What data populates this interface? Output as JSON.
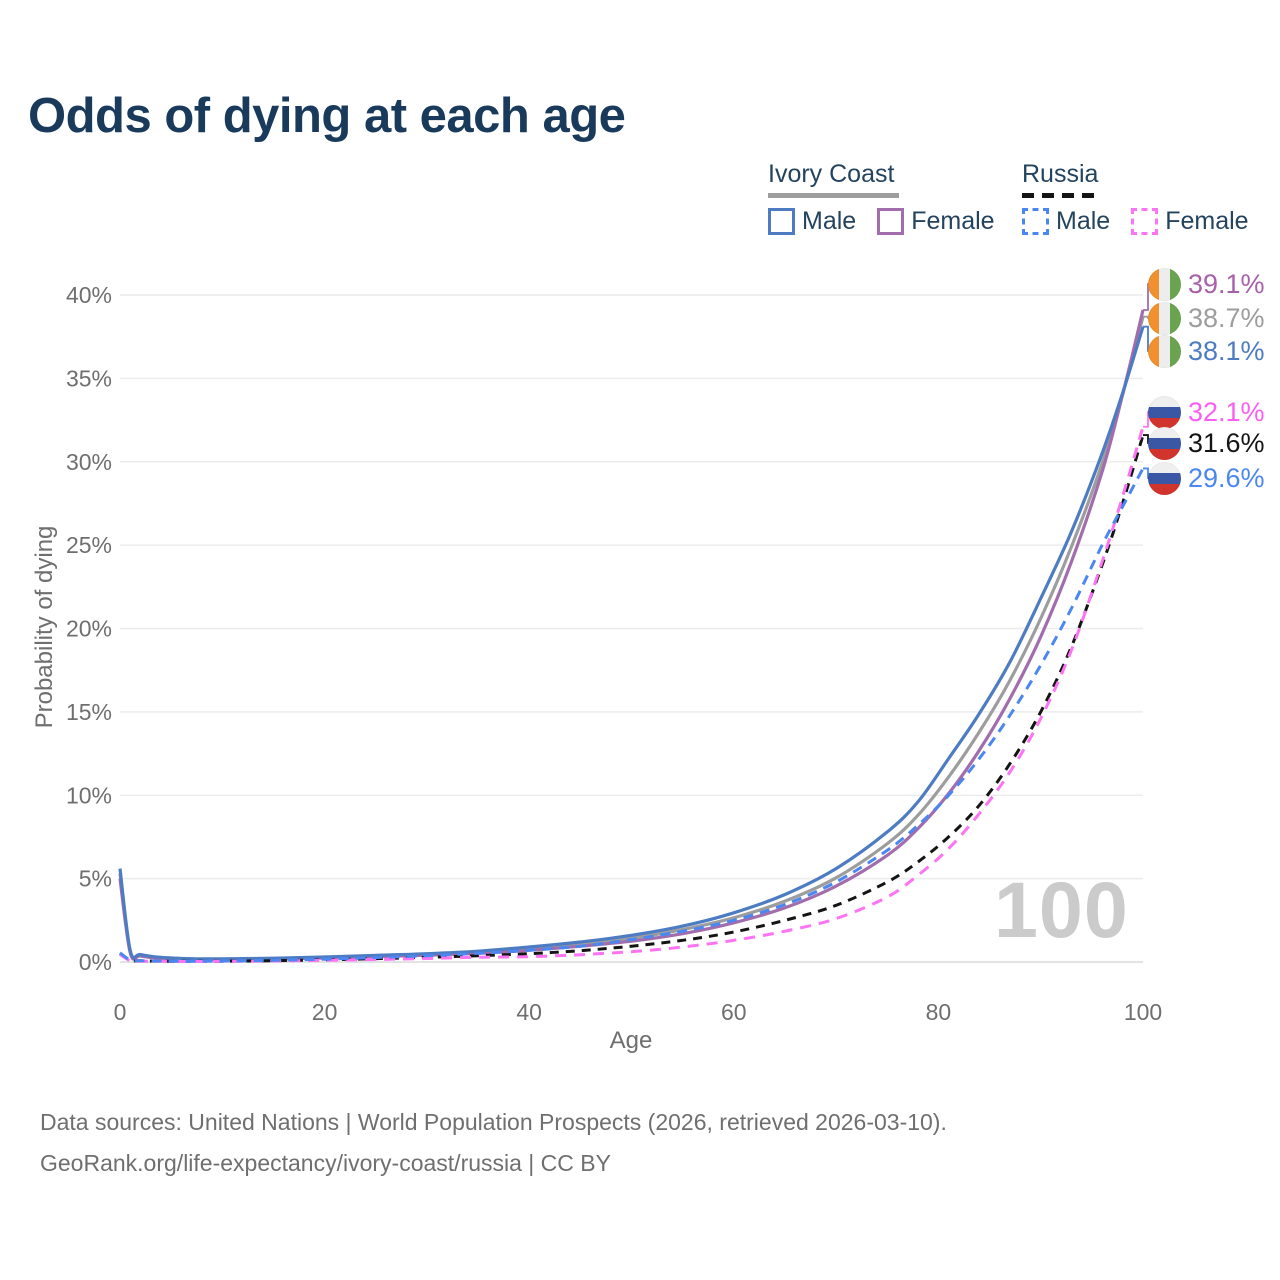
{
  "title": "Odds of dying at each age",
  "watermark": "100",
  "legend": {
    "groups": [
      {
        "title": "Ivory Coast",
        "line_style": "solid",
        "items": [
          {
            "label": "Male",
            "color": "#4d7cc3"
          },
          {
            "label": "Female",
            "color": "#a26dad"
          }
        ]
      },
      {
        "title": "Russia",
        "line_style": "dashed",
        "items": [
          {
            "label": "Male",
            "color": "#4b87f1"
          },
          {
            "label": "Female",
            "color": "#fc73f3"
          }
        ]
      }
    ]
  },
  "axes": {
    "x": {
      "title": "Age",
      "ticks": [
        0,
        20,
        40,
        60,
        80,
        100
      ]
    },
    "y": {
      "title": "Probability of dying",
      "ticks": [
        "0%",
        "5%",
        "10%",
        "15%",
        "20%",
        "25%",
        "30%",
        "35%",
        "40%"
      ]
    }
  },
  "end_labels": [
    {
      "country": "Ivory Coast",
      "series": "Female",
      "value": "39.1%",
      "color": "#a860ab",
      "flag": "ivory-coast"
    },
    {
      "country": "Ivory Coast",
      "series": "Both sexes",
      "value": "38.7%",
      "color": "#9d9d9d",
      "flag": "ivory-coast"
    },
    {
      "country": "Ivory Coast",
      "series": "Male",
      "value": "38.1%",
      "color": "#4d7cc3",
      "flag": "ivory-coast"
    },
    {
      "country": "Russia",
      "series": "Female",
      "value": "32.1%",
      "color": "#fc5ef3",
      "flag": "russia"
    },
    {
      "country": "Russia",
      "series": "Both sexes",
      "value": "31.6%",
      "color": "#141414",
      "flag": "russia"
    },
    {
      "country": "Russia",
      "series": "Male",
      "value": "29.6%",
      "color": "#4b87f1",
      "flag": "russia"
    }
  ],
  "footer": {
    "line1": "Data sources: United Nations | World Population Prospects (2026, retrieved 2026-03-10).",
    "line2": "GeoRank.org/life-expectancy/ivory-coast/russia | CC BY"
  },
  "chart_data": {
    "type": "line",
    "xlabel": "Age",
    "ylabel": "Probability of dying",
    "x_min": 0,
    "x_max": 100,
    "y_min": 0,
    "y_max": 40,
    "y_unit": "%",
    "grid": true,
    "legend_position": "top-right",
    "series": [
      {
        "id": "ivory-coast-both",
        "country": "Ivory Coast",
        "sex": "Both sexes",
        "color": "#9d9d9d",
        "dash": "solid",
        "end_value": 38.7,
        "label_row": 1,
        "points": [
          [
            0,
            5.3
          ],
          [
            1,
            0.63
          ],
          [
            2,
            0.4
          ],
          [
            4,
            0.25
          ],
          [
            7,
            0.18
          ],
          [
            10,
            0.17
          ],
          [
            15,
            0.2
          ],
          [
            20,
            0.27
          ],
          [
            25,
            0.36
          ],
          [
            30,
            0.45
          ],
          [
            35,
            0.58
          ],
          [
            40,
            0.8
          ],
          [
            45,
            1.05
          ],
          [
            50,
            1.42
          ],
          [
            55,
            1.95
          ],
          [
            60,
            2.65
          ],
          [
            65,
            3.65
          ],
          [
            70,
            5.05
          ],
          [
            75,
            7.1
          ],
          [
            78,
            8.8
          ],
          [
            81,
            11.1
          ],
          [
            84,
            13.8
          ],
          [
            87,
            16.9
          ],
          [
            90,
            20.6
          ],
          [
            93,
            24.9
          ],
          [
            96,
            29.9
          ],
          [
            98,
            34.0
          ],
          [
            100,
            38.7
          ]
        ]
      },
      {
        "id": "ivory-coast-female",
        "country": "Ivory Coast",
        "sex": "Female",
        "color": "#a26dad",
        "dash": "solid",
        "end_value": 39.1,
        "label_row": 0,
        "points": [
          [
            0,
            5.0
          ],
          [
            1,
            0.56
          ],
          [
            2,
            0.36
          ],
          [
            4,
            0.22
          ],
          [
            7,
            0.16
          ],
          [
            10,
            0.15
          ],
          [
            15,
            0.18
          ],
          [
            20,
            0.24
          ],
          [
            25,
            0.32
          ],
          [
            30,
            0.41
          ],
          [
            35,
            0.52
          ],
          [
            40,
            0.7
          ],
          [
            45,
            0.95
          ],
          [
            50,
            1.25
          ],
          [
            55,
            1.7
          ],
          [
            60,
            2.35
          ],
          [
            65,
            3.25
          ],
          [
            70,
            4.55
          ],
          [
            75,
            6.4
          ],
          [
            78,
            8.0
          ],
          [
            81,
            10.1
          ],
          [
            84,
            12.7
          ],
          [
            87,
            15.8
          ],
          [
            90,
            19.5
          ],
          [
            93,
            24.0
          ],
          [
            96,
            29.4
          ],
          [
            98,
            34.0
          ],
          [
            100,
            39.1
          ]
        ]
      },
      {
        "id": "ivory-coast-male",
        "country": "Ivory Coast",
        "sex": "Male",
        "color": "#4d7cc3",
        "dash": "solid",
        "end_value": 38.1,
        "label_row": 2,
        "points": [
          [
            0,
            5.6
          ],
          [
            1,
            0.7
          ],
          [
            2,
            0.45
          ],
          [
            4,
            0.28
          ],
          [
            7,
            0.2
          ],
          [
            10,
            0.19
          ],
          [
            15,
            0.23
          ],
          [
            20,
            0.3
          ],
          [
            25,
            0.4
          ],
          [
            30,
            0.5
          ],
          [
            35,
            0.65
          ],
          [
            40,
            0.9
          ],
          [
            45,
            1.2
          ],
          [
            50,
            1.6
          ],
          [
            55,
            2.15
          ],
          [
            60,
            2.95
          ],
          [
            65,
            4.05
          ],
          [
            70,
            5.6
          ],
          [
            75,
            7.8
          ],
          [
            78,
            9.6
          ],
          [
            81,
            12.2
          ],
          [
            84,
            14.9
          ],
          [
            87,
            18.0
          ],
          [
            90,
            21.8
          ],
          [
            93,
            25.8
          ],
          [
            96,
            30.5
          ],
          [
            98,
            34.1
          ],
          [
            100,
            38.1
          ]
        ]
      },
      {
        "id": "russia-both",
        "country": "Russia",
        "sex": "Both sexes",
        "color": "#141414",
        "dash": "dashed",
        "dasharray": "9 7",
        "end_value": 31.6,
        "label_row": 4,
        "points": [
          [
            0,
            0.5
          ],
          [
            1,
            0.1
          ],
          [
            2,
            0.07
          ],
          [
            4,
            0.05
          ],
          [
            7,
            0.04
          ],
          [
            10,
            0.05
          ],
          [
            15,
            0.08
          ],
          [
            20,
            0.13
          ],
          [
            25,
            0.2
          ],
          [
            30,
            0.28
          ],
          [
            35,
            0.38
          ],
          [
            40,
            0.5
          ],
          [
            45,
            0.68
          ],
          [
            50,
            0.95
          ],
          [
            55,
            1.3
          ],
          [
            60,
            1.8
          ],
          [
            65,
            2.5
          ],
          [
            70,
            3.4
          ],
          [
            75,
            4.8
          ],
          [
            78,
            6.0
          ],
          [
            81,
            7.5
          ],
          [
            84,
            9.4
          ],
          [
            87,
            11.9
          ],
          [
            90,
            15.0
          ],
          [
            93,
            18.9
          ],
          [
            96,
            23.8
          ],
          [
            98,
            27.5
          ],
          [
            100,
            31.6
          ]
        ]
      },
      {
        "id": "russia-female",
        "country": "Russia",
        "sex": "Female",
        "color": "#fc73f3",
        "dash": "dashed",
        "dasharray": "11 8",
        "end_value": 32.1,
        "label_row": 3,
        "points": [
          [
            0,
            0.45
          ],
          [
            1,
            0.08
          ],
          [
            2,
            0.05
          ],
          [
            4,
            0.04
          ],
          [
            7,
            0.03
          ],
          [
            10,
            0.04
          ],
          [
            15,
            0.06
          ],
          [
            20,
            0.1
          ],
          [
            25,
            0.15
          ],
          [
            30,
            0.21
          ],
          [
            35,
            0.28
          ],
          [
            40,
            0.32
          ],
          [
            45,
            0.44
          ],
          [
            50,
            0.62
          ],
          [
            55,
            0.9
          ],
          [
            60,
            1.3
          ],
          [
            65,
            1.85
          ],
          [
            70,
            2.6
          ],
          [
            75,
            3.9
          ],
          [
            78,
            5.2
          ],
          [
            81,
            6.8
          ],
          [
            84,
            8.9
          ],
          [
            87,
            11.4
          ],
          [
            90,
            14.6
          ],
          [
            93,
            18.7
          ],
          [
            96,
            24.0
          ],
          [
            98,
            27.9
          ],
          [
            100,
            32.1
          ]
        ]
      },
      {
        "id": "russia-male",
        "country": "Russia",
        "sex": "Male",
        "color": "#4b87f1",
        "dash": "dashed",
        "dasharray": "10 7",
        "end_value": 29.6,
        "label_row": 5,
        "points": [
          [
            0,
            0.55
          ],
          [
            1,
            0.12
          ],
          [
            2,
            0.08
          ],
          [
            4,
            0.06
          ],
          [
            7,
            0.05
          ],
          [
            10,
            0.06
          ],
          [
            15,
            0.1
          ],
          [
            20,
            0.17
          ],
          [
            25,
            0.27
          ],
          [
            30,
            0.38
          ],
          [
            35,
            0.52
          ],
          [
            40,
            0.7
          ],
          [
            45,
            0.95
          ],
          [
            50,
            1.35
          ],
          [
            55,
            1.85
          ],
          [
            60,
            2.5
          ],
          [
            65,
            3.45
          ],
          [
            70,
            4.8
          ],
          [
            75,
            6.7
          ],
          [
            78,
            8.2
          ],
          [
            81,
            10.0
          ],
          [
            84,
            12.2
          ],
          [
            87,
            14.8
          ],
          [
            90,
            17.8
          ],
          [
            93,
            21.2
          ],
          [
            96,
            25.0
          ],
          [
            98,
            27.3
          ],
          [
            100,
            29.6
          ]
        ]
      }
    ]
  }
}
